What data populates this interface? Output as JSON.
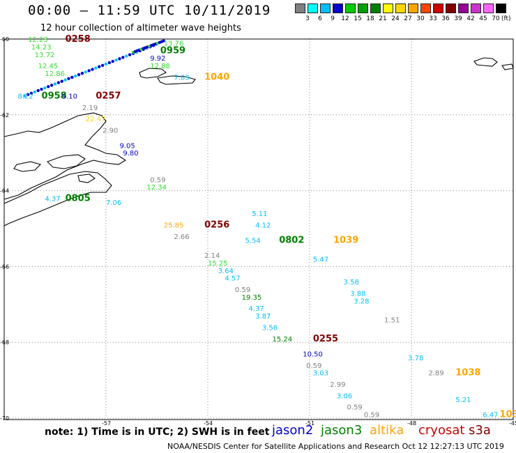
{
  "header": {
    "title": "00:00 – 11:59 UTC 10/11/2019",
    "subtitle": "12 hour collection of altimeter wave heights"
  },
  "scale": {
    "colors": [
      "#808080",
      "#00ffff",
      "#00bfff",
      "#0000cd",
      "#00cc00",
      "#00a000",
      "#008000",
      "#ffff00",
      "#ffd700",
      "#ffa500",
      "#ff4500",
      "#cc0000",
      "#800000",
      "#990099",
      "#cc33cc",
      "#ff66ff",
      "#000000"
    ],
    "labels": [
      "3",
      "6",
      "9",
      "12",
      "15",
      "18",
      "21",
      "24",
      "27",
      "30",
      "33",
      "36",
      "39",
      "42",
      "45",
      "70"
    ],
    "units": "(ft)"
  },
  "axes": {
    "x_ticks": [
      "-57",
      "-54",
      "-51",
      "-48",
      "-45"
    ],
    "y_ticks": [
      "-60",
      "-62",
      "-64",
      "-66",
      "-68",
      "-70"
    ],
    "x_range": [
      -60,
      -45
    ],
    "y_range": [
      -70,
      -60
    ]
  },
  "observations": [
    {
      "lon": -59.3,
      "lat": -60.0,
      "text": "12.23",
      "color": "#33dd33"
    },
    {
      "lon": -58.2,
      "lat": -60.0,
      "text": "0258",
      "color": "#800000"
    },
    {
      "lon": -59.2,
      "lat": -60.2,
      "text": "14.23",
      "color": "#33dd33"
    },
    {
      "lon": -59.1,
      "lat": -60.4,
      "text": "13.72",
      "color": "#33dd33"
    },
    {
      "lon": -59.0,
      "lat": -60.7,
      "text": "12.45",
      "color": "#33dd33"
    },
    {
      "lon": -58.8,
      "lat": -60.9,
      "text": "12.86",
      "color": "#33dd33"
    },
    {
      "lon": -59.6,
      "lat": -61.5,
      "text": "8.22",
      "color": "#00bfff"
    },
    {
      "lon": -58.9,
      "lat": -61.5,
      "text": "0958",
      "color": "#008000"
    },
    {
      "lon": -58.3,
      "lat": -61.5,
      "text": "9.10",
      "color": "#0000cd"
    },
    {
      "lon": -57.3,
      "lat": -61.5,
      "text": "0257",
      "color": "#800000"
    },
    {
      "lon": -57.7,
      "lat": -61.8,
      "text": "2.19",
      "color": "#808080"
    },
    {
      "lon": -57.6,
      "lat": -62.1,
      "text": "22.47",
      "color": "#ffd700"
    },
    {
      "lon": -57.1,
      "lat": -62.4,
      "text": "2.90",
      "color": "#808080"
    },
    {
      "lon": -56.6,
      "lat": -62.8,
      "text": "9.05",
      "color": "#0000cd"
    },
    {
      "lon": -56.5,
      "lat": -63.0,
      "text": "9.80",
      "color": "#0000cd"
    },
    {
      "lon": -55.7,
      "lat": -63.7,
      "text": "0.59",
      "color": "#808080"
    },
    {
      "lon": -55.8,
      "lat": -63.9,
      "text": "12.34",
      "color": "#33dd33"
    },
    {
      "lon": -58.8,
      "lat": -64.2,
      "text": "4.37",
      "color": "#00bfff"
    },
    {
      "lon": -58.2,
      "lat": -64.2,
      "text": "0805",
      "color": "#008000"
    },
    {
      "lon": -57.0,
      "lat": -64.3,
      "text": "7.06",
      "color": "#00bfff"
    },
    {
      "lon": -55.3,
      "lat": -64.9,
      "text": "25.85",
      "color": "#ffa500"
    },
    {
      "lon": -54.1,
      "lat": -64.9,
      "text": "0256",
      "color": "#800000"
    },
    {
      "lon": -55.0,
      "lat": -65.2,
      "text": "2.66",
      "color": "#808080"
    },
    {
      "lon": -54.1,
      "lat": -65.7,
      "text": "2.14",
      "color": "#808080"
    },
    {
      "lon": -54.0,
      "lat": -65.9,
      "text": "15.25",
      "color": "#33dd33"
    },
    {
      "lon": -53.7,
      "lat": -66.1,
      "text": "3.64",
      "color": "#00bfff"
    },
    {
      "lon": -53.5,
      "lat": -66.3,
      "text": "4.57",
      "color": "#00bfff"
    },
    {
      "lon": -53.2,
      "lat": -66.6,
      "text": "0.59",
      "color": "#808080"
    },
    {
      "lon": -53.0,
      "lat": -66.8,
      "text": "19.35",
      "color": "#008000"
    },
    {
      "lon": -52.8,
      "lat": -67.1,
      "text": "4.37",
      "color": "#00bfff"
    },
    {
      "lon": -52.6,
      "lat": -67.3,
      "text": "3.87",
      "color": "#00bfff"
    },
    {
      "lon": -52.4,
      "lat": -67.6,
      "text": "3.56",
      "color": "#00bfff"
    },
    {
      "lon": -52.1,
      "lat": -67.9,
      "text": "15.24",
      "color": "#008000"
    },
    {
      "lon": -50.9,
      "lat": -67.9,
      "text": "0255",
      "color": "#800000"
    },
    {
      "lon": -51.2,
      "lat": -68.3,
      "text": "10.50",
      "color": "#0000cd"
    },
    {
      "lon": -51.1,
      "lat": -68.6,
      "text": "0.59",
      "color": "#808080"
    },
    {
      "lon": -50.9,
      "lat": -68.8,
      "text": "3.03",
      "color": "#00bfff"
    },
    {
      "lon": -50.4,
      "lat": -69.1,
      "text": "2.99",
      "color": "#808080"
    },
    {
      "lon": -50.2,
      "lat": -69.4,
      "text": "3.06",
      "color": "#00bfff"
    },
    {
      "lon": -49.9,
      "lat": -69.7,
      "text": "0.59",
      "color": "#808080"
    },
    {
      "lon": -49.4,
      "lat": -69.9,
      "text": "0.59",
      "color": "#808080"
    },
    {
      "lon": -52.7,
      "lat": -64.6,
      "text": "5.11",
      "color": "#00bfff"
    },
    {
      "lon": -52.6,
      "lat": -64.9,
      "text": "4.12",
      "color": "#00bfff"
    },
    {
      "lon": -52.9,
      "lat": -65.3,
      "text": "5.54",
      "color": "#00bfff"
    },
    {
      "lon": -51.9,
      "lat": -65.3,
      "text": "0802",
      "color": "#008000"
    },
    {
      "lon": -50.3,
      "lat": -65.3,
      "text": "1039",
      "color": "#ffa500"
    },
    {
      "lon": -50.9,
      "lat": -65.8,
      "text": "5.47",
      "color": "#00bfff"
    },
    {
      "lon": -50.0,
      "lat": -66.4,
      "text": "3.58",
      "color": "#00bfff"
    },
    {
      "lon": -49.8,
      "lat": -66.7,
      "text": "3.88",
      "color": "#00bfff"
    },
    {
      "lon": -49.7,
      "lat": -66.9,
      "text": "3.28",
      "color": "#00bfff"
    },
    {
      "lon": -48.8,
      "lat": -67.4,
      "text": "1.51",
      "color": "#808080"
    },
    {
      "lon": -48.1,
      "lat": -68.4,
      "text": "3.78",
      "color": "#00bfff"
    },
    {
      "lon": -47.5,
      "lat": -68.8,
      "text": "2.89",
      "color": "#808080"
    },
    {
      "lon": -46.7,
      "lat": -68.8,
      "text": "1038",
      "color": "#ffa500"
    },
    {
      "lon": -46.7,
      "lat": -69.5,
      "text": "5.21",
      "color": "#00bfff"
    },
    {
      "lon": -45.9,
      "lat": -69.9,
      "text": "6.47",
      "color": "#00bfff"
    },
    {
      "lon": -45.4,
      "lat": -69.9,
      "text": "103",
      "color": "#ffa500"
    },
    {
      "lon": -55.3,
      "lat": -60.1,
      "text": "13.76",
      "color": "#33dd33"
    },
    {
      "lon": -55.4,
      "lat": -60.3,
      "text": "0959",
      "color": "#008000"
    },
    {
      "lon": -55.7,
      "lat": -60.5,
      "text": "9.92",
      "color": "#0000cd"
    },
    {
      "lon": -55.7,
      "lat": -60.7,
      "text": "12.88",
      "color": "#33dd33"
    },
    {
      "lon": -55.0,
      "lat": -61.0,
      "text": "7.83",
      "color": "#00bfff"
    },
    {
      "lon": -54.1,
      "lat": -61.0,
      "text": "1040",
      "color": "#ffa500"
    }
  ],
  "footer": {
    "note": "note: 1) Time is in UTC; 2) SWH is in feet",
    "satellites": [
      {
        "name": "jason2",
        "color": "#0000cd"
      },
      {
        "name": "jason3",
        "color": "#008000"
      },
      {
        "name": "altika",
        "color": "#ffa500"
      },
      {
        "name": "cryosat",
        "color": "#cc0000"
      },
      {
        "name": "s3a",
        "color": "#800000"
      }
    ],
    "credit": "NOAA/NESDIS Center for Satellite Applications and Research     Oct 12 12:27:13 UTC 2019"
  }
}
